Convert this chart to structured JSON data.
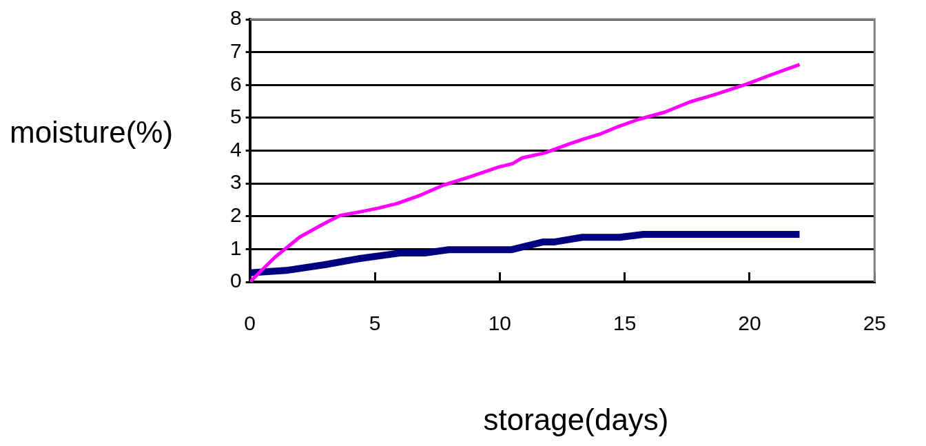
{
  "chart_data": {
    "type": "line",
    "xlabel": "storage(days)",
    "ylabel": "moisture(%)",
    "xlim": [
      0,
      25
    ],
    "xticks": [
      0,
      5,
      10,
      15,
      20,
      25
    ],
    "ylim": [
      0,
      8
    ],
    "yticks": [
      0,
      1,
      2,
      3,
      4,
      5,
      6,
      7,
      8
    ],
    "grid": "y",
    "legend": false,
    "marker": "none",
    "line_style": "solid",
    "series": [
      {
        "color": "#ff00ff",
        "x": [
          0,
          1,
          2,
          2.95,
          3.6,
          4.5,
          5.15,
          5.9,
          6.85,
          7.75,
          8.8,
          9.95,
          10.5,
          10.9,
          11.8,
          12.7,
          13.3,
          14,
          14.8,
          15.55,
          16.6,
          17.6,
          18.7,
          19.85,
          20.9,
          22
        ],
        "values": [
          0,
          0.75,
          1.37,
          1.77,
          2.02,
          2.15,
          2.25,
          2.39,
          2.65,
          2.95,
          3.2,
          3.5,
          3.6,
          3.78,
          3.93,
          4.18,
          4.34,
          4.5,
          4.75,
          4.95,
          5.17,
          5.48,
          5.73,
          6.02,
          6.32,
          6.62
        ]
      },
      {
        "color": "#000080",
        "x": [
          0,
          1.45,
          2.95,
          4.45,
          6,
          7,
          7.95,
          10.45,
          11.75,
          12.2,
          13.3,
          14.8,
          15.75,
          22
        ],
        "values": [
          0.28,
          0.35,
          0.52,
          0.72,
          0.88,
          0.88,
          0.98,
          0.98,
          1.22,
          1.22,
          1.36,
          1.36,
          1.45,
          1.45
        ]
      }
    ]
  }
}
